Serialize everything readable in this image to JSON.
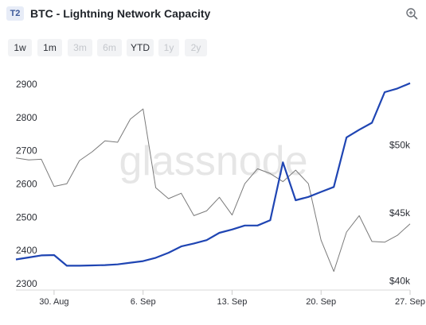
{
  "header": {
    "badge": "T2",
    "title": "BTC - Lightning Network Capacity",
    "zoom_icon": "zoom-in-icon"
  },
  "ranges": [
    {
      "label": "1w",
      "enabled": true
    },
    {
      "label": "1m",
      "enabled": true
    },
    {
      "label": "3m",
      "enabled": false
    },
    {
      "label": "6m",
      "enabled": false
    },
    {
      "label": "YTD",
      "enabled": true
    },
    {
      "label": "1y",
      "enabled": false
    },
    {
      "label": "2y",
      "enabled": false
    }
  ],
  "watermark": "glassnode",
  "colors": {
    "capacity": "#1f45b3",
    "price": "#7a7a7a",
    "axis_text": "#2c2f36",
    "watermark": "#e6e6e6"
  },
  "chart_data": {
    "type": "line",
    "x_range": [
      "2021-08-27",
      "2021-09-27"
    ],
    "x_ticks": [
      {
        "date": "2021-08-30",
        "label": "30. Aug"
      },
      {
        "date": "2021-09-06",
        "label": "6. Sep"
      },
      {
        "date": "2021-09-13",
        "label": "13. Sep"
      },
      {
        "date": "2021-09-20",
        "label": "20. Sep"
      },
      {
        "date": "2021-09-27",
        "label": "27. Sep"
      }
    ],
    "y_left": {
      "ticks": [
        2300,
        2400,
        2500,
        2600,
        2700,
        2800,
        2900
      ],
      "range": [
        2300,
        2900
      ]
    },
    "y_right": {
      "ticks": [
        40000,
        45000,
        50000
      ],
      "tick_labels": [
        "$40k",
        "$45k",
        "$50k"
      ],
      "range": [
        39800,
        55400
      ]
    },
    "series": [
      {
        "name": "",
        "axis": "left",
        "points": [
          [
            "2021-08-27",
            2373
          ],
          [
            "2021-08-28",
            2379
          ],
          [
            "2021-08-29",
            2385
          ],
          [
            "2021-08-30",
            2386
          ],
          [
            "2021-08-31",
            2354
          ],
          [
            "2021-09-01",
            2354
          ],
          [
            "2021-09-02",
            2355
          ],
          [
            "2021-09-03",
            2356
          ],
          [
            "2021-09-04",
            2358
          ],
          [
            "2021-09-05",
            2363
          ],
          [
            "2021-09-06",
            2368
          ],
          [
            "2021-09-07",
            2378
          ],
          [
            "2021-09-08",
            2393
          ],
          [
            "2021-09-09",
            2412
          ],
          [
            "2021-09-10",
            2421
          ],
          [
            "2021-09-11",
            2431
          ],
          [
            "2021-09-12",
            2453
          ],
          [
            "2021-09-13",
            2463
          ],
          [
            "2021-09-14",
            2475
          ],
          [
            "2021-09-15",
            2475
          ],
          [
            "2021-09-16",
            2491
          ],
          [
            "2021-09-17",
            2665
          ],
          [
            "2021-09-18",
            2551
          ],
          [
            "2021-09-19",
            2561
          ],
          [
            "2021-09-20",
            2576
          ],
          [
            "2021-09-21",
            2591
          ],
          [
            "2021-09-22",
            2740
          ],
          [
            "2021-09-23",
            2763
          ],
          [
            "2021-09-24",
            2784
          ],
          [
            "2021-09-25",
            2876
          ],
          [
            "2021-09-26",
            2887
          ],
          [
            "2021-09-27",
            2903
          ]
        ]
      },
      {
        "name": "",
        "axis": "right",
        "points": [
          [
            "2021-08-27",
            49050
          ],
          [
            "2021-08-28",
            48900
          ],
          [
            "2021-08-29",
            48950
          ],
          [
            "2021-08-30",
            46950
          ],
          [
            "2021-08-31",
            47150
          ],
          [
            "2021-09-01",
            48850
          ],
          [
            "2021-09-02",
            49500
          ],
          [
            "2021-09-03",
            50300
          ],
          [
            "2021-09-04",
            50200
          ],
          [
            "2021-09-05",
            51900
          ],
          [
            "2021-09-06",
            52650
          ],
          [
            "2021-09-07",
            46850
          ],
          [
            "2021-09-08",
            46050
          ],
          [
            "2021-09-09",
            46450
          ],
          [
            "2021-09-10",
            44800
          ],
          [
            "2021-09-11",
            45150
          ],
          [
            "2021-09-12",
            46150
          ],
          [
            "2021-09-13",
            44850
          ],
          [
            "2021-09-14",
            47150
          ],
          [
            "2021-09-15",
            48250
          ],
          [
            "2021-09-16",
            47900
          ],
          [
            "2021-09-17",
            47300
          ],
          [
            "2021-09-18",
            48150
          ],
          [
            "2021-09-19",
            47150
          ],
          [
            "2021-09-20",
            43000
          ],
          [
            "2021-09-21",
            40700
          ],
          [
            "2021-09-22",
            43600
          ],
          [
            "2021-09-23",
            44800
          ],
          [
            "2021-09-24",
            42900
          ],
          [
            "2021-09-25",
            42850
          ],
          [
            "2021-09-26",
            43350
          ],
          [
            "2021-09-27",
            44200
          ]
        ]
      }
    ],
    "grid": false,
    "legend": "none"
  }
}
